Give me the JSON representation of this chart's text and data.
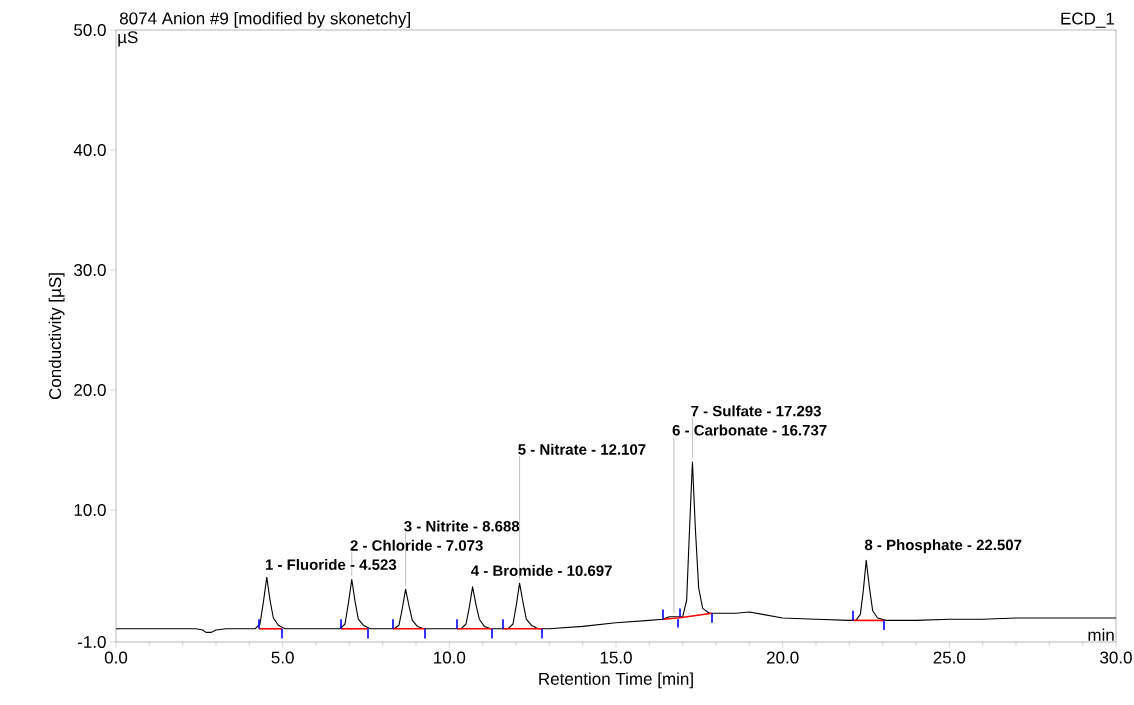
{
  "chart_data": {
    "type": "line",
    "title": "8074 Anion #9 [modified by skonetchy]",
    "xlabel": "Retention Time [min]",
    "ylabel": "Conductivity [µS]",
    "xlim": [
      0,
      30
    ],
    "ylim": [
      -1,
      50
    ],
    "xticks": [
      {
        "value": 0,
        "label": "0.0"
      },
      {
        "value": 5,
        "label": "5.0"
      },
      {
        "value": 10,
        "label": "10.0"
      },
      {
        "value": 15,
        "label": "15.0"
      },
      {
        "value": 20,
        "label": "20.0"
      },
      {
        "value": 25,
        "label": "25.0"
      },
      {
        "value": 30,
        "label": "30.0"
      }
    ],
    "yticks": [
      {
        "value": -1,
        "label": "-1.0"
      },
      {
        "value": 10,
        "label": "10.0"
      },
      {
        "value": 20,
        "label": "20.0"
      },
      {
        "value": 30,
        "label": "30.0"
      },
      {
        "value": 40,
        "label": "40.0"
      },
      {
        "value": 50,
        "label": "50.0"
      }
    ],
    "series": [
      {
        "color": "#000000",
        "x": [
          0,
          2.4,
          2.6,
          2.7,
          2.85,
          3.0,
          3.3,
          4.0,
          4.17,
          4.32,
          4.42,
          4.523,
          4.62,
          4.72,
          4.87,
          5.07,
          6.0,
          6.72,
          6.87,
          6.97,
          7.073,
          7.17,
          7.27,
          7.42,
          7.62,
          8.34,
          8.49,
          8.59,
          8.688,
          8.79,
          8.89,
          9.04,
          9.24,
          10.35,
          10.5,
          10.6,
          10.697,
          10.8,
          10.9,
          11.05,
          11.25,
          11.76,
          11.91,
          12.01,
          12.107,
          12.21,
          12.31,
          12.46,
          12.66,
          13.0,
          14.0,
          15.0,
          16.0,
          16.4,
          16.6,
          16.737,
          16.86,
          17.0,
          17.12,
          17.2,
          17.293,
          17.38,
          17.48,
          17.6,
          17.8,
          18.2,
          18.6,
          19.0,
          19.4,
          20.0,
          21.0,
          22.0,
          22.2,
          22.33,
          22.42,
          22.507,
          22.6,
          22.7,
          22.85,
          23.1,
          24.0,
          25.0,
          26.0,
          27.0,
          28.0,
          29.0,
          30.0
        ],
        "values": [
          0.1,
          0.1,
          0.0,
          -0.2,
          -0.2,
          0.0,
          0.1,
          0.1,
          0.1,
          0.5,
          2.3,
          4.4,
          2.5,
          1.0,
          0.4,
          0.1,
          0.1,
          0.1,
          0.5,
          2.2,
          4.2,
          2.4,
          0.9,
          0.4,
          0.1,
          0.1,
          0.4,
          1.8,
          3.4,
          2.0,
          0.8,
          0.3,
          0.1,
          0.1,
          0.5,
          1.9,
          3.6,
          2.1,
          0.9,
          0.3,
          0.1,
          0.1,
          0.5,
          2.1,
          3.9,
          2.3,
          0.9,
          0.4,
          0.1,
          0.1,
          0.3,
          0.6,
          0.8,
          0.9,
          1.1,
          1.1,
          1.1,
          1.1,
          2.5,
          8.0,
          14.0,
          8.5,
          3.5,
          1.8,
          1.4,
          1.4,
          1.4,
          1.5,
          1.3,
          1.0,
          0.9,
          0.8,
          0.8,
          1.3,
          3.3,
          5.8,
          3.6,
          1.6,
          1.0,
          0.8,
          0.8,
          0.9,
          0.9,
          1.0,
          1.0,
          1.0,
          1.0
        ]
      },
      {
        "color": "#ff0000",
        "x": [
          4.29,
          4.98
        ],
        "values": [
          0.1,
          0.1
        ]
      },
      {
        "color": "#ff0000",
        "x": [
          6.75,
          7.56
        ],
        "values": [
          0.1,
          0.1
        ]
      },
      {
        "color": "#ff0000",
        "x": [
          8.31,
          9.27
        ],
        "values": [
          0.1,
          0.1
        ]
      },
      {
        "color": "#ff0000",
        "x": [
          10.23,
          11.28
        ],
        "values": [
          0.1,
          0.1
        ]
      },
      {
        "color": "#ff0000",
        "x": [
          11.61,
          12.78
        ],
        "values": [
          0.1,
          0.1
        ]
      },
      {
        "color": "#ff0000",
        "x": [
          16.41,
          16.86,
          17.88
        ],
        "values": [
          0.9,
          1.0,
          1.4
        ]
      },
      {
        "color": "#ff0000",
        "x": [
          22.11,
          23.04
        ],
        "values": [
          0.8,
          0.8
        ]
      },
      {
        "color": "#0000ff",
        "x": [
          4.29,
          4.29
        ],
        "values": [
          0.1,
          0.9
        ]
      },
      {
        "color": "#0000ff",
        "x": [
          4.98,
          4.98
        ],
        "values": [
          0.1,
          -0.7
        ]
      },
      {
        "color": "#0000ff",
        "x": [
          6.75,
          6.75
        ],
        "values": [
          0.1,
          0.9
        ]
      },
      {
        "color": "#0000ff",
        "x": [
          7.56,
          7.56
        ],
        "values": [
          0.1,
          -0.7
        ]
      },
      {
        "color": "#0000ff",
        "x": [
          8.31,
          8.31
        ],
        "values": [
          0.1,
          0.9
        ]
      },
      {
        "color": "#0000ff",
        "x": [
          9.27,
          9.27
        ],
        "values": [
          0.1,
          -0.7
        ]
      },
      {
        "color": "#0000ff",
        "x": [
          10.23,
          10.23
        ],
        "values": [
          0.1,
          0.9
        ]
      },
      {
        "color": "#0000ff",
        "x": [
          11.28,
          11.28
        ],
        "values": [
          0.1,
          -0.7
        ]
      },
      {
        "color": "#0000ff",
        "x": [
          11.61,
          11.61
        ],
        "values": [
          0.1,
          0.9
        ]
      },
      {
        "color": "#0000ff",
        "x": [
          12.78,
          12.78
        ],
        "values": [
          0.1,
          -0.7
        ]
      },
      {
        "color": "#0000ff",
        "x": [
          16.41,
          16.41
        ],
        "values": [
          0.9,
          1.7
        ]
      },
      {
        "color": "#0000ff",
        "x": [
          16.86,
          16.86
        ],
        "values": [
          0.9,
          0.2
        ]
      },
      {
        "color": "#0000ff",
        "x": [
          16.92,
          16.92
        ],
        "values": [
          1.1,
          1.8
        ]
      },
      {
        "color": "#0000ff",
        "x": [
          17.88,
          17.88
        ],
        "values": [
          1.4,
          0.6
        ]
      },
      {
        "color": "#0000ff",
        "x": [
          22.11,
          22.11
        ],
        "values": [
          0.8,
          1.6
        ]
      },
      {
        "color": "#0000ff",
        "x": [
          23.04,
          23.04
        ],
        "values": [
          0.8,
          0.0
        ]
      }
    ],
    "annotations": [
      "ECD_1",
      "µS",
      "min",
      {
        "text": "1 - Fluoride - 4.523",
        "x": 4.523,
        "y": 4.4
      },
      {
        "text": "2 - Chloride - 7.073",
        "x": 7.073,
        "y": 4.2
      },
      {
        "text": "3 - Nitrite - 8.688",
        "x": 8.688,
        "y": 3.4
      },
      {
        "text": "4 - Bromide - 10.697",
        "x": 10.697,
        "y": 3.6
      },
      {
        "text": "5 - Nitrate - 12.107",
        "x": 12.107,
        "y": 3.9
      },
      {
        "text": "6 - Carbonate - 16.737",
        "x": 16.737,
        "y": 1.1
      },
      {
        "text": "7 - Sulfate - 17.293",
        "x": 17.293,
        "y": 14.0
      },
      {
        "text": "8 - Phosphate - 22.507",
        "x": 22.507,
        "y": 5.8
      }
    ]
  }
}
